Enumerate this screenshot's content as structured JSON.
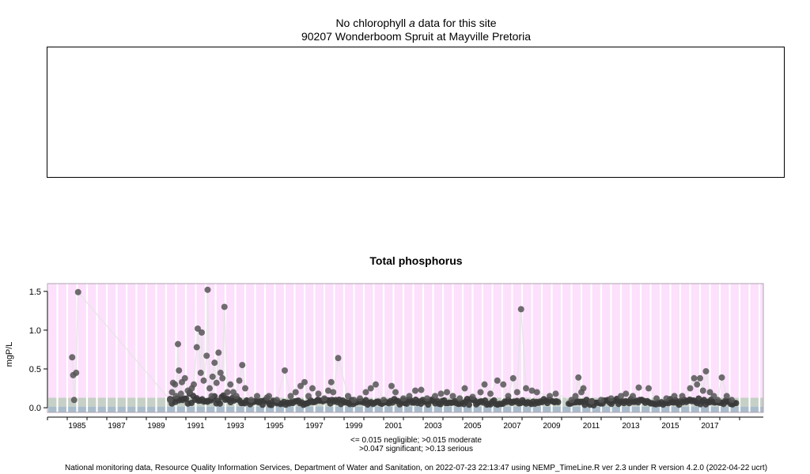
{
  "top_panel": {
    "title_prefix": "No chlorophyll",
    "title_italic": "a",
    "title_suffix": "data for this site",
    "site": "90207 Wonderboom Spruit at Mayville Pretoria"
  },
  "chart_data": {
    "type": "scatter",
    "title": "Total phosphorus",
    "ylabel": "mgP/L",
    "xlabel": "",
    "x_ticks": [
      "1985",
      "1987",
      "1989",
      "1991",
      "1993",
      "1995",
      "1997",
      "1999",
      "2001",
      "2003",
      "2005",
      "2007",
      "2009",
      "2011",
      "2013",
      "2015",
      "2017"
    ],
    "y_ticks": [
      "0.0",
      "0.5",
      "1.0",
      "1.5"
    ],
    "xlim": [
      1984.0,
      2020.2
    ],
    "ylim": [
      -0.06,
      1.6
    ],
    "grid": true,
    "background_bands": [
      {
        "label": "negligible",
        "max": 0.015,
        "color": "#a9bccc"
      },
      {
        "label": "moderate",
        "max": 0.047,
        "color": "#c6d0c6"
      },
      {
        "label": "significant",
        "max": 0.13,
        "color": "#c6d0c6"
      },
      {
        "label": "serious",
        "max": 1.6,
        "color": "#fce0fc"
      }
    ],
    "series": [
      {
        "point_color": "#3a3a3a",
        "points": [
          [
            1985.25,
            0.65
          ],
          [
            1985.3,
            0.42
          ],
          [
            1985.35,
            0.1
          ],
          [
            1985.45,
            0.45
          ],
          [
            1985.55,
            1.49
          ],
          [
            1990.2,
            0.1
          ],
          [
            1990.3,
            0.2
          ],
          [
            1990.35,
            0.32
          ],
          [
            1990.45,
            0.3
          ],
          [
            1990.5,
            0.15
          ],
          [
            1990.6,
            0.82
          ],
          [
            1990.65,
            0.48
          ],
          [
            1990.75,
            0.18
          ],
          [
            1990.8,
            0.33
          ],
          [
            1990.95,
            0.38
          ],
          [
            1991.1,
            0.22
          ],
          [
            1991.2,
            0.2
          ],
          [
            1991.3,
            0.25
          ],
          [
            1991.4,
            0.3
          ],
          [
            1991.55,
            0.78
          ],
          [
            1991.6,
            1.02
          ],
          [
            1991.75,
            0.45
          ],
          [
            1991.8,
            0.97
          ],
          [
            1991.9,
            0.35
          ],
          [
            1992.05,
            0.67
          ],
          [
            1992.1,
            1.52
          ],
          [
            1992.2,
            0.25
          ],
          [
            1992.3,
            0.15
          ],
          [
            1992.35,
            0.4
          ],
          [
            1992.45,
            0.58
          ],
          [
            1992.55,
            0.32
          ],
          [
            1992.65,
            0.71
          ],
          [
            1992.75,
            0.45
          ],
          [
            1992.85,
            0.38
          ],
          [
            1992.95,
            1.3
          ],
          [
            1993.1,
            0.2
          ],
          [
            1993.25,
            0.3
          ],
          [
            1993.4,
            0.2
          ],
          [
            1993.55,
            0.15
          ],
          [
            1993.7,
            0.35
          ],
          [
            1993.85,
            0.55
          ],
          [
            1994.0,
            0.25
          ],
          [
            1994.3,
            0.1
          ],
          [
            1994.6,
            0.15
          ],
          [
            1995.1,
            0.13
          ],
          [
            1995.2,
            0.15
          ],
          [
            1995.6,
            0.1
          ],
          [
            1996.0,
            0.48
          ],
          [
            1996.3,
            0.15
          ],
          [
            1996.55,
            0.2
          ],
          [
            1996.8,
            0.28
          ],
          [
            1997.0,
            0.33
          ],
          [
            1997.2,
            0.15
          ],
          [
            1997.4,
            0.25
          ],
          [
            1997.7,
            0.18
          ],
          [
            1998.0,
            0.12
          ],
          [
            1998.2,
            0.22
          ],
          [
            1998.35,
            0.33
          ],
          [
            1998.45,
            0.2
          ],
          [
            1998.7,
            0.64
          ],
          [
            1999.2,
            0.15
          ],
          [
            1999.5,
            0.1
          ],
          [
            1999.8,
            0.12
          ],
          [
            2000.1,
            0.2
          ],
          [
            2000.35,
            0.25
          ],
          [
            2000.6,
            0.3
          ],
          [
            2001.0,
            0.1
          ],
          [
            2001.4,
            0.28
          ],
          [
            2001.6,
            0.2
          ],
          [
            2002.0,
            0.12
          ],
          [
            2002.3,
            0.15
          ],
          [
            2002.6,
            0.22
          ],
          [
            2002.9,
            0.23
          ],
          [
            2003.2,
            0.12
          ],
          [
            2003.6,
            0.15
          ],
          [
            2003.9,
            0.18
          ],
          [
            2004.2,
            0.2
          ],
          [
            2004.5,
            0.15
          ],
          [
            2004.85,
            0.12
          ],
          [
            2005.1,
            0.25
          ],
          [
            2005.5,
            0.14
          ],
          [
            2005.9,
            0.2
          ],
          [
            2006.1,
            0.3
          ],
          [
            2006.4,
            0.18
          ],
          [
            2006.75,
            0.35
          ],
          [
            2007.05,
            0.3
          ],
          [
            2007.3,
            0.15
          ],
          [
            2007.55,
            0.38
          ],
          [
            2007.75,
            0.2
          ],
          [
            2007.95,
            1.27
          ],
          [
            2008.2,
            0.25
          ],
          [
            2008.5,
            0.22
          ],
          [
            2008.75,
            0.2
          ],
          [
            2009.4,
            0.15
          ],
          [
            2009.7,
            0.18
          ],
          [
            2010.5,
            0.1
          ],
          [
            2010.7,
            0.15
          ],
          [
            2010.85,
            0.39
          ],
          [
            2011.0,
            0.2
          ],
          [
            2011.1,
            0.25
          ],
          [
            2011.5,
            0.08
          ],
          [
            2012.0,
            0.1
          ],
          [
            2012.5,
            0.12
          ],
          [
            2013.0,
            0.15
          ],
          [
            2013.25,
            0.18
          ],
          [
            2013.6,
            0.15
          ],
          [
            2013.9,
            0.26
          ],
          [
            2014.4,
            0.25
          ],
          [
            2014.8,
            0.12
          ],
          [
            2015.3,
            0.12
          ],
          [
            2015.7,
            0.15
          ],
          [
            2016.1,
            0.15
          ],
          [
            2016.5,
            0.25
          ],
          [
            2016.7,
            0.38
          ],
          [
            2016.85,
            0.3
          ],
          [
            2017.0,
            0.38
          ],
          [
            2017.15,
            0.22
          ],
          [
            2017.3,
            0.47
          ],
          [
            2017.5,
            0.2
          ],
          [
            2017.7,
            0.15
          ],
          [
            2017.9,
            0.1
          ],
          [
            2018.1,
            0.39
          ],
          [
            2018.35,
            0.15
          ],
          [
            2018.6,
            0.1
          ]
        ],
        "baseline_range": [
          1990.2,
          2018.9
        ],
        "baseline_gaps": [
          [
            2009.85,
            2010.35
          ]
        ]
      }
    ],
    "notes": [
      "<= 0.015 negligible; >0.015 moderate",
      ">0.047 significant; >0.13 serious"
    ]
  },
  "footer": "National monitoring data, Resource Quality Information Services, Department of Water and Sanitation, on 2022-07-23 22:13:47 using NEMP_TimeLine.R ver 2.3 under R version 4.2.0 (2022-04-22 ucrt)"
}
